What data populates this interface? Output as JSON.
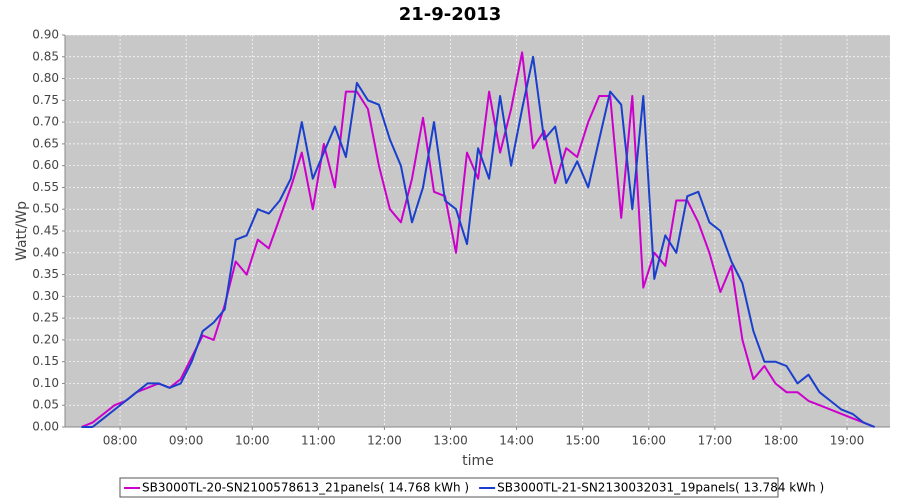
{
  "chart_data": {
    "type": "line",
    "title": "21-9-2013",
    "x_label": "time",
    "y_label": "Watt/Wp",
    "x": [
      "07:25",
      "07:35",
      "07:45",
      "07:55",
      "08:05",
      "08:15",
      "08:25",
      "08:35",
      "08:45",
      "08:55",
      "09:05",
      "09:15",
      "09:25",
      "09:35",
      "09:45",
      "09:55",
      "10:05",
      "10:15",
      "10:25",
      "10:35",
      "10:45",
      "10:55",
      "11:05",
      "11:15",
      "11:25",
      "11:35",
      "11:45",
      "11:55",
      "12:05",
      "12:15",
      "12:25",
      "12:35",
      "12:45",
      "12:55",
      "13:05",
      "13:15",
      "13:25",
      "13:35",
      "13:45",
      "13:55",
      "14:05",
      "14:15",
      "14:25",
      "14:35",
      "14:45",
      "14:55",
      "15:05",
      "15:15",
      "15:25",
      "15:35",
      "15:45",
      "15:55",
      "16:05",
      "16:15",
      "16:25",
      "16:35",
      "16:45",
      "16:55",
      "17:05",
      "17:15",
      "17:25",
      "17:35",
      "17:45",
      "17:55",
      "18:05",
      "18:15",
      "18:25",
      "18:35",
      "18:45",
      "18:55",
      "19:05",
      "19:15",
      "19:25"
    ],
    "series": [
      {
        "name": "SB3000TL-20-SN2100578613_21panels( 14.768 kWh )",
        "color": "#cc00cc",
        "values": [
          0.0,
          0.01,
          0.03,
          0.05,
          0.06,
          0.08,
          0.09,
          0.1,
          0.09,
          0.11,
          0.16,
          0.21,
          0.2,
          0.28,
          0.38,
          0.35,
          0.43,
          0.41,
          0.48,
          0.55,
          0.63,
          0.5,
          0.65,
          0.55,
          0.77,
          0.77,
          0.73,
          0.6,
          0.5,
          0.47,
          0.57,
          0.71,
          0.54,
          0.53,
          0.4,
          0.63,
          0.57,
          0.77,
          0.63,
          0.73,
          0.86,
          0.64,
          0.68,
          0.56,
          0.64,
          0.62,
          0.7,
          0.76,
          0.76,
          0.48,
          0.76,
          0.32,
          0.4,
          0.37,
          0.52,
          0.52,
          0.47,
          0.4,
          0.31,
          0.37,
          0.2,
          0.11,
          0.14,
          0.1,
          0.08,
          0.08,
          0.06,
          0.05,
          0.04,
          0.03,
          0.02,
          0.01,
          0.0
        ]
      },
      {
        "name": "SB3000TL-21-SN2130032031_19panels( 13.784 kWh )",
        "color": "#1a3fcc",
        "values": [
          0.0,
          0.0,
          0.02,
          0.04,
          0.06,
          0.08,
          0.1,
          0.1,
          0.09,
          0.1,
          0.15,
          0.22,
          0.24,
          0.27,
          0.43,
          0.44,
          0.5,
          0.49,
          0.52,
          0.57,
          0.7,
          0.57,
          0.63,
          0.69,
          0.62,
          0.79,
          0.75,
          0.74,
          0.66,
          0.6,
          0.47,
          0.55,
          0.7,
          0.52,
          0.5,
          0.42,
          0.64,
          0.57,
          0.76,
          0.6,
          0.73,
          0.85,
          0.66,
          0.69,
          0.56,
          0.61,
          0.55,
          0.66,
          0.77,
          0.74,
          0.5,
          0.76,
          0.34,
          0.44,
          0.4,
          0.53,
          0.54,
          0.47,
          0.45,
          0.38,
          0.33,
          0.22,
          0.15,
          0.15,
          0.14,
          0.1,
          0.12,
          0.08,
          0.06,
          0.04,
          0.03,
          0.01,
          0.0
        ]
      }
    ],
    "xlim": [
      "07:10",
      "19:39"
    ],
    "xticks": [
      "08:00",
      "09:00",
      "10:00",
      "11:00",
      "12:00",
      "13:00",
      "14:00",
      "15:00",
      "16:00",
      "17:00",
      "18:00",
      "19:00"
    ],
    "ylim": [
      0,
      0.9
    ],
    "yticks": [
      {
        "value": 0,
        "label": "0.00"
      },
      {
        "value": 0.05,
        "label": "0.05"
      },
      {
        "value": 0.1,
        "label": "0.10"
      },
      {
        "value": 0.15,
        "label": "0.15"
      },
      {
        "value": 0.2,
        "label": "0.20"
      },
      {
        "value": 0.25,
        "label": "0.25"
      },
      {
        "value": 0.3,
        "label": "0.30"
      },
      {
        "value": 0.35,
        "label": "0.35"
      },
      {
        "value": 0.4,
        "label": "0.40"
      },
      {
        "value": 0.45,
        "label": "0.45"
      },
      {
        "value": 0.5,
        "label": "0.50"
      },
      {
        "value": 0.55,
        "label": "0.55"
      },
      {
        "value": 0.6,
        "label": "0.60"
      },
      {
        "value": 0.65,
        "label": "0.65"
      },
      {
        "value": 0.7,
        "label": "0.70"
      },
      {
        "value": 0.75,
        "label": "0.75"
      },
      {
        "value": 0.8,
        "label": "0.80"
      },
      {
        "value": 0.85,
        "label": "0.85"
      },
      {
        "value": 0.9,
        "label": "0.90"
      }
    ],
    "grid": true
  }
}
